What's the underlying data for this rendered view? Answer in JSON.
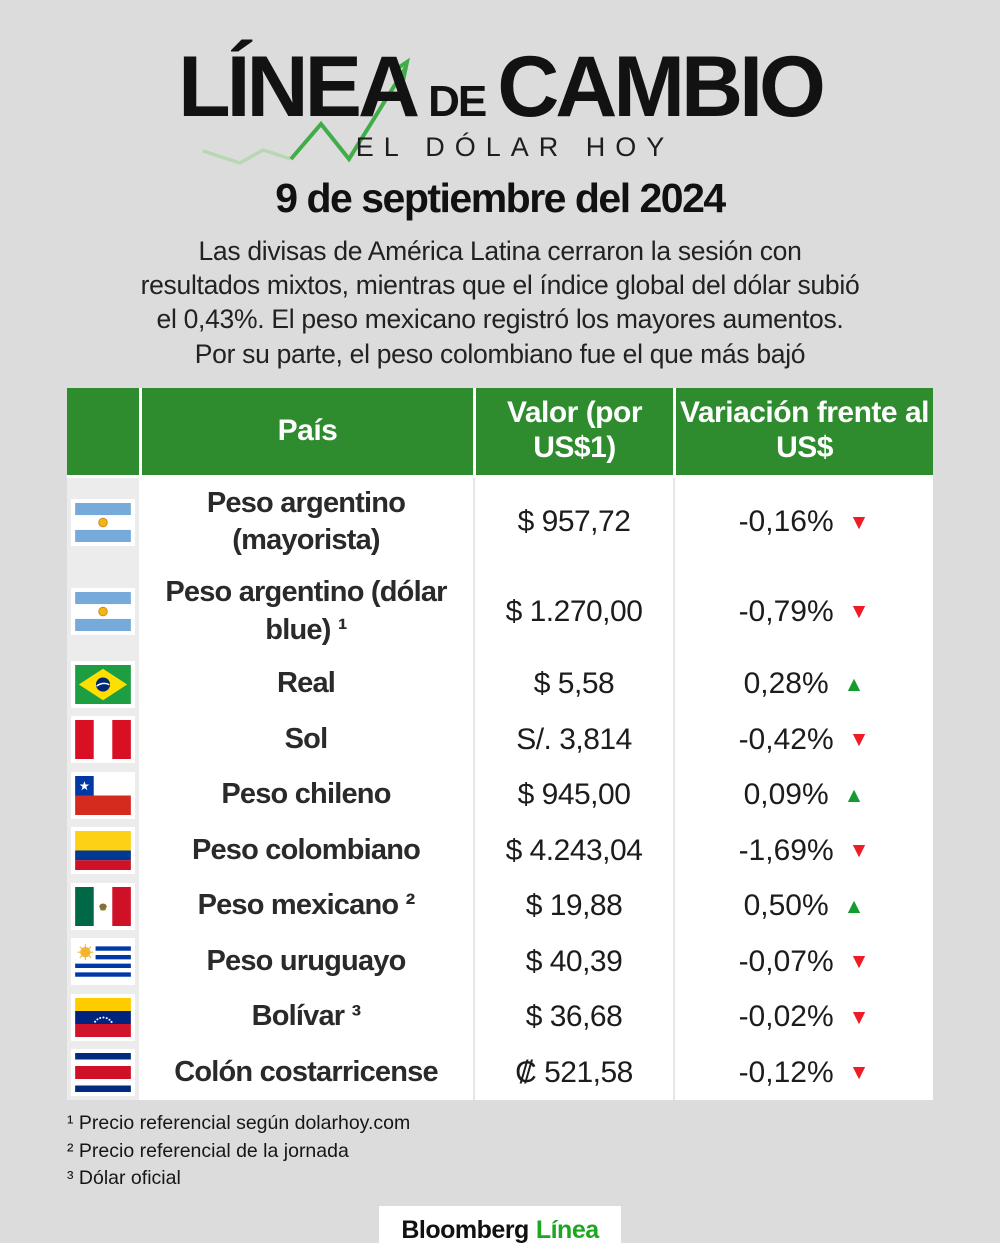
{
  "header": {
    "title_linea": "LÍNEA",
    "title_de": "DE",
    "title_cambio": "CAMBIO",
    "subtitle": "EL DÓLAR HOY",
    "date": "9 de septiembre del 2024",
    "description_lines": [
      "Las divisas de América Latina cerraron la sesión con",
      "resultados mixtos, mientras que el índice global del dólar subió",
      "el 0,43%. El peso mexicano registró los mayores aumentos.",
      "Por su parte, el peso colombiano fue el que más bajó"
    ]
  },
  "table": {
    "columns": {
      "country": "País",
      "value": "Valor (por US$1)",
      "variation": "Variación frente al US$"
    },
    "rows": [
      {
        "flag": "argentina",
        "name": "Peso argentino (mayorista)",
        "value": "$ 957,72",
        "change": "-0,16%",
        "direction": "down"
      },
      {
        "flag": "argentina",
        "name": "Peso argentino (dólar blue) ¹",
        "value": "$ 1.270,00",
        "change": "-0,79%",
        "direction": "down"
      },
      {
        "flag": "brazil",
        "name": "Real",
        "value": "$ 5,58",
        "change": "0,28%",
        "direction": "up"
      },
      {
        "flag": "peru",
        "name": "Sol",
        "value": "S/. 3,814",
        "change": "-0,42%",
        "direction": "down"
      },
      {
        "flag": "chile",
        "name": "Peso chileno",
        "value": "$ 945,00",
        "change": "0,09%",
        "direction": "up"
      },
      {
        "flag": "colombia",
        "name": "Peso colombiano",
        "value": "$ 4.243,04",
        "change": "-1,69%",
        "direction": "down"
      },
      {
        "flag": "mexico",
        "name": "Peso mexicano ²",
        "value": "$ 19,88",
        "change": "0,50%",
        "direction": "up"
      },
      {
        "flag": "uruguay",
        "name": "Peso uruguayo",
        "value": "$ 40,39",
        "change": "-0,07%",
        "direction": "down"
      },
      {
        "flag": "venezuela",
        "name": "Bolívar ³",
        "value": "$ 36,68",
        "change": "-0,02%",
        "direction": "down"
      },
      {
        "flag": "costa-rica",
        "name": "Colón costarricense",
        "value": "₡ 521,58",
        "change": "-0,12%",
        "direction": "down"
      }
    ]
  },
  "footnotes": [
    "¹ Precio referencial según dolarhoy.com",
    "² Precio referencial de la jornada",
    "³ Dólar oficial"
  ],
  "footer": {
    "brand_black": "Bloomberg",
    "brand_green": "Línea"
  },
  "colors": {
    "background": "#dcdcdc",
    "header_green": "#2e8b2e",
    "up_green": "#169c2e",
    "down_red": "#ee1c25",
    "brand_green": "#1fa621",
    "logo_line_green": "#3fae49"
  },
  "chart_data": {
    "type": "table",
    "title": "Línea de Cambio — El dólar hoy — 9 de septiembre del 2024",
    "columns": [
      "País",
      "Valor (por US$1)",
      "Variación frente al US$"
    ],
    "rows": [
      [
        "Peso argentino (mayorista)",
        "$ 957,72",
        "-0,16%"
      ],
      [
        "Peso argentino (dólar blue) ¹",
        "$ 1.270,00",
        "-0,79%"
      ],
      [
        "Real",
        "$ 5,58",
        "0,28%"
      ],
      [
        "Sol",
        "S/. 3,814",
        "-0,42%"
      ],
      [
        "Peso chileno",
        "$ 945,00",
        "0,09%"
      ],
      [
        "Peso colombiano",
        "$ 4.243,04",
        "-1,69%"
      ],
      [
        "Peso mexicano ²",
        "$ 19,88",
        "0,50%"
      ],
      [
        "Peso uruguayo",
        "$ 40,39",
        "-0,07%"
      ],
      [
        "Bolívar ³",
        "$ 36,68",
        "-0,02%"
      ],
      [
        "Colón costarricense",
        "₡ 521,58",
        "-0,12%"
      ]
    ]
  }
}
